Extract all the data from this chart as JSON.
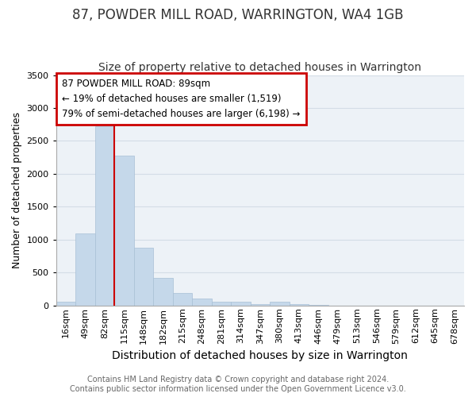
{
  "title": "87, POWDER MILL ROAD, WARRINGTON, WA4 1GB",
  "subtitle": "Size of property relative to detached houses in Warrington",
  "xlabel": "Distribution of detached houses by size in Warrington",
  "ylabel": "Number of detached properties",
  "footer_line1": "Contains HM Land Registry data © Crown copyright and database right 2024.",
  "footer_line2": "Contains public sector information licensed under the Open Government Licence v3.0.",
  "bar_labels": [
    "16sqm",
    "49sqm",
    "82sqm",
    "115sqm",
    "148sqm",
    "182sqm",
    "215sqm",
    "248sqm",
    "281sqm",
    "314sqm",
    "347sqm",
    "380sqm",
    "413sqm",
    "446sqm",
    "479sqm",
    "513sqm",
    "546sqm",
    "579sqm",
    "612sqm",
    "645sqm",
    "678sqm"
  ],
  "bar_values": [
    55,
    1100,
    2720,
    2280,
    880,
    420,
    195,
    100,
    55,
    55,
    25,
    55,
    25,
    10,
    3,
    3,
    1,
    1,
    0,
    0,
    0
  ],
  "bar_color": "#c5d8ea",
  "bar_edge_color": "#a8c0d6",
  "annotation_text": "87 POWDER MILL ROAD: 89sqm\n← 19% of detached houses are smaller (1,519)\n79% of semi-detached houses are larger (6,198) →",
  "annotation_box_facecolor": "#ffffff",
  "annotation_border_color": "#cc0000",
  "vline_color": "#cc0000",
  "vline_x": 2.5,
  "ylim": [
    0,
    3500
  ],
  "yticks": [
    0,
    500,
    1000,
    1500,
    2000,
    2500,
    3000,
    3500
  ],
  "grid_color": "#d4dde6",
  "plot_bg_color": "#edf2f7",
  "title_fontsize": 12,
  "subtitle_fontsize": 10,
  "xlabel_fontsize": 10,
  "ylabel_fontsize": 9,
  "tick_fontsize": 8,
  "annot_fontsize": 8.5,
  "footer_fontsize": 7
}
